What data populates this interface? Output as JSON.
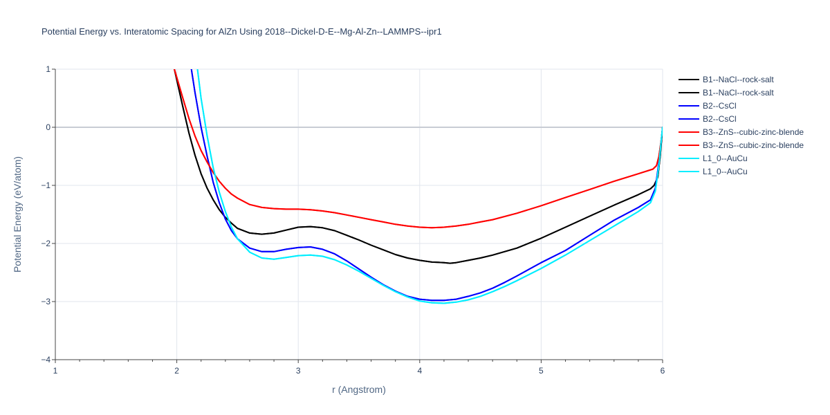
{
  "chart_data": {
    "type": "line",
    "title": "Potential Energy vs. Interatomic Spacing for AlZn Using 2018--Dickel-D-E--Mg-Al-Zn--LAMMPS--ipr1",
    "xlabel": "r (Angstrom)",
    "ylabel": "Potential Energy (eV/atom)",
    "xlim": [
      1,
      6
    ],
    "ylim": [
      -4,
      1
    ],
    "x_ticks": [
      "1",
      "2",
      "3",
      "4",
      "5",
      "6"
    ],
    "y_ticks": [
      "1",
      "0",
      "−1",
      "−2",
      "−3",
      "−4"
    ],
    "grid": true,
    "legend_position": "right",
    "series": [
      {
        "name": "B1--NaCl--rock-salt",
        "color": "#000000",
        "x": [
          1.98,
          2.05,
          2.1,
          2.15,
          2.2,
          2.25,
          2.3,
          2.35,
          2.4,
          2.45,
          2.5,
          2.6,
          2.7,
          2.8,
          2.9,
          3.0,
          3.1,
          3.2,
          3.3,
          3.4,
          3.5,
          3.6,
          3.7,
          3.8,
          3.9,
          4.0,
          4.1,
          4.2,
          4.25,
          4.3,
          4.4,
          4.5,
          4.6,
          4.8,
          5.0,
          5.2,
          5.4,
          5.6,
          5.8,
          5.9,
          5.93,
          5.96,
          5.98,
          6.0
        ],
        "y": [
          1.0,
          0.35,
          -0.1,
          -0.48,
          -0.8,
          -1.05,
          -1.25,
          -1.42,
          -1.55,
          -1.65,
          -1.74,
          -1.82,
          -1.84,
          -1.82,
          -1.77,
          -1.72,
          -1.71,
          -1.73,
          -1.78,
          -1.86,
          -1.94,
          -2.03,
          -2.11,
          -2.19,
          -2.25,
          -2.29,
          -2.32,
          -2.33,
          -2.34,
          -2.33,
          -2.29,
          -2.25,
          -2.2,
          -2.08,
          -1.91,
          -1.72,
          -1.53,
          -1.34,
          -1.16,
          -1.06,
          -1.0,
          -0.86,
          -0.5,
          0.0
        ]
      },
      {
        "name": "B1--NaCl--rock-salt",
        "color": "#000000",
        "x": [
          1.98,
          2.05,
          2.1,
          2.15,
          2.2,
          2.25,
          2.3,
          2.35,
          2.4,
          2.45,
          2.5,
          2.6,
          2.7,
          2.8,
          2.9,
          3.0,
          3.1,
          3.2,
          3.3,
          3.4,
          3.5,
          3.6,
          3.7,
          3.8,
          3.9,
          4.0,
          4.1,
          4.2,
          4.25,
          4.3,
          4.4,
          4.5,
          4.6,
          4.8,
          5.0,
          5.2,
          5.4,
          5.6,
          5.8,
          5.9,
          5.93,
          5.96,
          5.98,
          6.0
        ],
        "y": [
          1.0,
          0.35,
          -0.1,
          -0.48,
          -0.8,
          -1.05,
          -1.25,
          -1.42,
          -1.55,
          -1.65,
          -1.74,
          -1.82,
          -1.84,
          -1.82,
          -1.77,
          -1.72,
          -1.71,
          -1.73,
          -1.78,
          -1.86,
          -1.94,
          -2.03,
          -2.11,
          -2.19,
          -2.25,
          -2.29,
          -2.32,
          -2.33,
          -2.34,
          -2.33,
          -2.29,
          -2.25,
          -2.2,
          -2.08,
          -1.91,
          -1.72,
          -1.53,
          -1.34,
          -1.16,
          -1.06,
          -1.0,
          -0.86,
          -0.5,
          0.0
        ]
      },
      {
        "name": "B2--CsCl",
        "color": "#0000ff",
        "x": [
          2.12,
          2.15,
          2.2,
          2.25,
          2.3,
          2.35,
          2.4,
          2.45,
          2.5,
          2.6,
          2.7,
          2.8,
          2.9,
          3.0,
          3.1,
          3.2,
          3.3,
          3.4,
          3.5,
          3.6,
          3.7,
          3.8,
          3.9,
          4.0,
          4.1,
          4.2,
          4.3,
          4.4,
          4.5,
          4.6,
          4.7,
          4.8,
          5.0,
          5.2,
          5.4,
          5.6,
          5.8,
          5.9,
          5.94,
          5.97,
          5.99,
          6.0
        ],
        "y": [
          1.0,
          0.6,
          0.0,
          -0.5,
          -0.95,
          -1.3,
          -1.58,
          -1.78,
          -1.92,
          -2.08,
          -2.14,
          -2.14,
          -2.1,
          -2.07,
          -2.06,
          -2.1,
          -2.18,
          -2.3,
          -2.44,
          -2.58,
          -2.71,
          -2.82,
          -2.91,
          -2.96,
          -2.98,
          -2.98,
          -2.96,
          -2.91,
          -2.85,
          -2.77,
          -2.67,
          -2.56,
          -2.33,
          -2.12,
          -1.86,
          -1.6,
          -1.38,
          -1.25,
          -1.05,
          -0.6,
          -0.2,
          0.0
        ]
      },
      {
        "name": "B2--CsCl",
        "color": "#0000ff",
        "x": [
          2.12,
          2.15,
          2.2,
          2.25,
          2.3,
          2.35,
          2.4,
          2.45,
          2.5,
          2.6,
          2.7,
          2.8,
          2.9,
          3.0,
          3.1,
          3.2,
          3.3,
          3.4,
          3.5,
          3.6,
          3.7,
          3.8,
          3.9,
          4.0,
          4.1,
          4.2,
          4.3,
          4.4,
          4.5,
          4.6,
          4.7,
          4.8,
          5.0,
          5.2,
          5.4,
          5.6,
          5.8,
          5.9,
          5.94,
          5.97,
          5.99,
          6.0
        ],
        "y": [
          1.0,
          0.6,
          0.0,
          -0.5,
          -0.95,
          -1.3,
          -1.58,
          -1.78,
          -1.92,
          -2.08,
          -2.14,
          -2.14,
          -2.1,
          -2.07,
          -2.06,
          -2.1,
          -2.18,
          -2.3,
          -2.44,
          -2.58,
          -2.71,
          -2.82,
          -2.91,
          -2.96,
          -2.98,
          -2.98,
          -2.96,
          -2.91,
          -2.85,
          -2.77,
          -2.67,
          -2.56,
          -2.33,
          -2.12,
          -1.86,
          -1.6,
          -1.38,
          -1.25,
          -1.05,
          -0.6,
          -0.2,
          0.0
        ]
      },
      {
        "name": "B3--ZnS--cubic-zinc-blende",
        "color": "#ff0000",
        "x": [
          1.98,
          2.05,
          2.1,
          2.15,
          2.2,
          2.25,
          2.3,
          2.35,
          2.4,
          2.45,
          2.5,
          2.6,
          2.7,
          2.8,
          2.9,
          3.0,
          3.1,
          3.2,
          3.3,
          3.4,
          3.5,
          3.6,
          3.7,
          3.8,
          3.9,
          4.0,
          4.1,
          4.2,
          4.3,
          4.4,
          4.5,
          4.6,
          4.8,
          5.0,
          5.2,
          5.4,
          5.6,
          5.8,
          5.92,
          5.95,
          5.97,
          5.99,
          6.0
        ],
        "y": [
          1.0,
          0.5,
          0.15,
          -0.15,
          -0.4,
          -0.6,
          -0.78,
          -0.93,
          -1.05,
          -1.15,
          -1.22,
          -1.33,
          -1.38,
          -1.4,
          -1.41,
          -1.41,
          -1.42,
          -1.44,
          -1.47,
          -1.51,
          -1.55,
          -1.59,
          -1.63,
          -1.67,
          -1.7,
          -1.72,
          -1.73,
          -1.72,
          -1.7,
          -1.67,
          -1.63,
          -1.59,
          -1.48,
          -1.35,
          -1.21,
          -1.07,
          -0.93,
          -0.8,
          -0.72,
          -0.66,
          -0.5,
          -0.2,
          0.0
        ]
      },
      {
        "name": "B3--ZnS--cubic-zinc-blende",
        "color": "#ff0000",
        "x": [
          1.98,
          2.05,
          2.1,
          2.15,
          2.2,
          2.25,
          2.3,
          2.35,
          2.4,
          2.45,
          2.5,
          2.6,
          2.7,
          2.8,
          2.9,
          3.0,
          3.1,
          3.2,
          3.3,
          3.4,
          3.5,
          3.6,
          3.7,
          3.8,
          3.9,
          4.0,
          4.1,
          4.2,
          4.3,
          4.4,
          4.5,
          4.6,
          4.8,
          5.0,
          5.2,
          5.4,
          5.6,
          5.8,
          5.92,
          5.95,
          5.97,
          5.99,
          6.0
        ],
        "y": [
          1.0,
          0.5,
          0.15,
          -0.15,
          -0.4,
          -0.6,
          -0.78,
          -0.93,
          -1.05,
          -1.15,
          -1.22,
          -1.33,
          -1.38,
          -1.4,
          -1.41,
          -1.41,
          -1.42,
          -1.44,
          -1.47,
          -1.51,
          -1.55,
          -1.59,
          -1.63,
          -1.67,
          -1.7,
          -1.72,
          -1.73,
          -1.72,
          -1.7,
          -1.67,
          -1.63,
          -1.59,
          -1.48,
          -1.35,
          -1.21,
          -1.07,
          -0.93,
          -0.8,
          -0.72,
          -0.66,
          -0.5,
          -0.2,
          0.0
        ]
      },
      {
        "name": "L1_0--AuCu",
        "color": "#00eeff",
        "x": [
          2.17,
          2.2,
          2.25,
          2.3,
          2.35,
          2.4,
          2.45,
          2.5,
          2.6,
          2.7,
          2.8,
          2.9,
          3.0,
          3.1,
          3.2,
          3.3,
          3.4,
          3.5,
          3.6,
          3.7,
          3.8,
          3.9,
          4.0,
          4.1,
          4.2,
          4.3,
          4.4,
          4.5,
          4.6,
          4.7,
          4.8,
          5.0,
          5.2,
          5.4,
          5.6,
          5.8,
          5.9,
          5.94,
          5.97,
          5.99,
          6.0
        ],
        "y": [
          1.0,
          0.5,
          -0.15,
          -0.7,
          -1.12,
          -1.45,
          -1.72,
          -1.92,
          -2.15,
          -2.25,
          -2.27,
          -2.24,
          -2.21,
          -2.2,
          -2.22,
          -2.28,
          -2.37,
          -2.48,
          -2.6,
          -2.72,
          -2.83,
          -2.92,
          -2.99,
          -3.02,
          -3.03,
          -3.01,
          -2.97,
          -2.91,
          -2.83,
          -2.74,
          -2.64,
          -2.43,
          -2.2,
          -1.95,
          -1.7,
          -1.45,
          -1.3,
          -1.1,
          -0.65,
          -0.2,
          0.0
        ]
      },
      {
        "name": "L1_0--AuCu",
        "color": "#00eeff",
        "x": [
          2.17,
          2.2,
          2.25,
          2.3,
          2.35,
          2.4,
          2.45,
          2.5,
          2.6,
          2.7,
          2.8,
          2.9,
          3.0,
          3.1,
          3.2,
          3.3,
          3.4,
          3.5,
          3.6,
          3.7,
          3.8,
          3.9,
          4.0,
          4.1,
          4.2,
          4.3,
          4.4,
          4.5,
          4.6,
          4.7,
          4.8,
          5.0,
          5.2,
          5.4,
          5.6,
          5.8,
          5.9,
          5.94,
          5.97,
          5.99,
          6.0
        ],
        "y": [
          1.0,
          0.5,
          -0.15,
          -0.7,
          -1.12,
          -1.45,
          -1.72,
          -1.92,
          -2.15,
          -2.25,
          -2.27,
          -2.24,
          -2.21,
          -2.2,
          -2.22,
          -2.28,
          -2.37,
          -2.48,
          -2.6,
          -2.72,
          -2.83,
          -2.92,
          -2.99,
          -3.02,
          -3.03,
          -3.01,
          -2.97,
          -2.91,
          -2.83,
          -2.74,
          -2.64,
          -2.43,
          -2.2,
          -1.95,
          -1.7,
          -1.45,
          -1.3,
          -1.1,
          -0.65,
          -0.2,
          0.0
        ]
      }
    ]
  }
}
